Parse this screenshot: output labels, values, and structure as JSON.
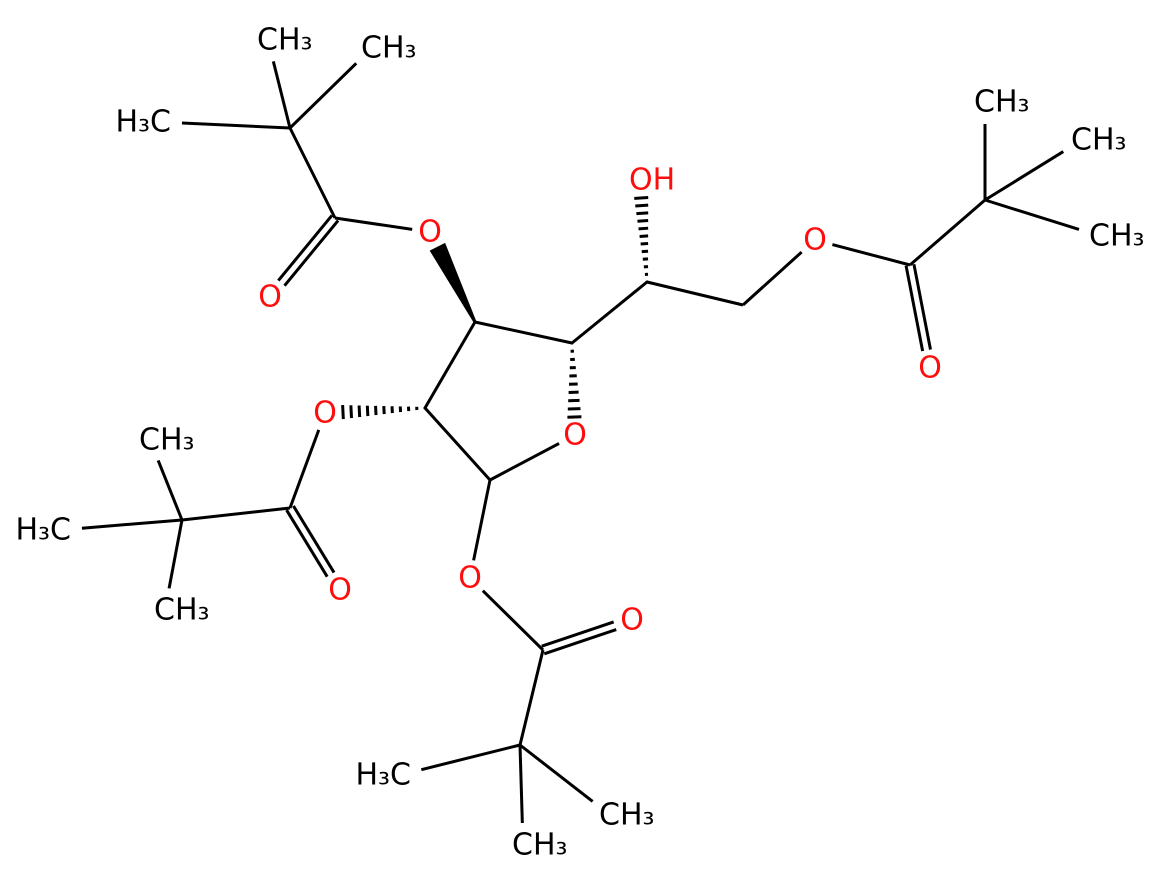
{
  "atoms": [
    {
      "label": "O"
    },
    {
      "label": "O"
    },
    {
      "label": "O"
    },
    {
      "label": "CH₃"
    },
    {
      "label": "CH₃"
    },
    {
      "label": "H₃C"
    },
    {
      "label": "OH"
    },
    {
      "label": "O"
    },
    {
      "label": "O"
    },
    {
      "label": "CH₃"
    },
    {
      "label": "CH₃"
    },
    {
      "label": "CH₃"
    },
    {
      "label": "O"
    },
    {
      "label": "O"
    },
    {
      "label": "CH₃"
    },
    {
      "label": "H₃C"
    },
    {
      "label": "CH₃"
    },
    {
      "label": "O"
    },
    {
      "label": "O"
    },
    {
      "label": "H₃C"
    },
    {
      "label": "CH₃"
    },
    {
      "label": "CH₃"
    }
  ]
}
